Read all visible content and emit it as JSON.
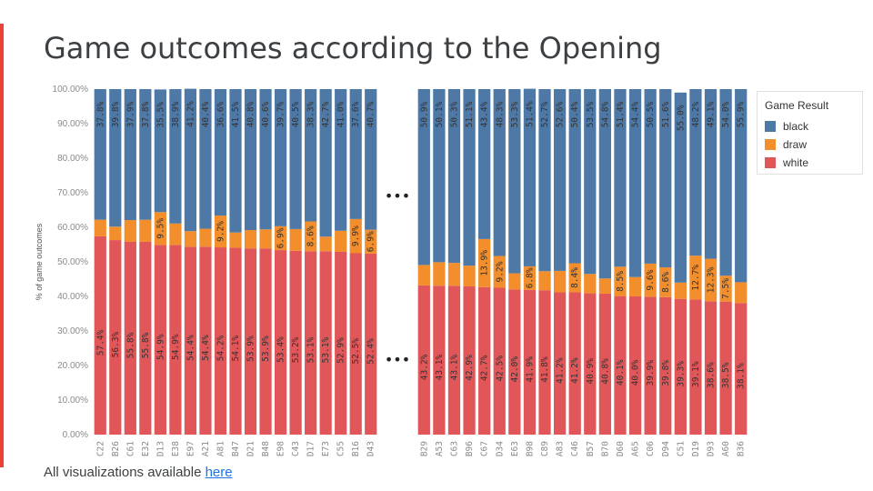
{
  "title": "Game outcomes according to the Opening",
  "footer": {
    "text": "All visualizations available ",
    "link_label": "here"
  },
  "legend": {
    "title": "Game Result",
    "items": [
      {
        "label": "black",
        "color": "#4e79a7"
      },
      {
        "label": "draw",
        "color": "#f28e2b"
      },
      {
        "label": "white",
        "color": "#e15759"
      }
    ]
  },
  "ellipsis": "•••",
  "chart_data": [
    {
      "type": "bar",
      "stacked": true,
      "ylabel": "% of game outcomes",
      "ylim": [
        0,
        100
      ],
      "yticks": [
        "0.00%",
        "10.00%",
        "20.00%",
        "30.00%",
        "40.00%",
        "50.00%",
        "60.00%",
        "70.00%",
        "80.00%",
        "90.00%",
        "100.00%"
      ],
      "categories": [
        "C22",
        "B26",
        "C61",
        "E32",
        "D13",
        "E38",
        "E97",
        "A21",
        "A81",
        "B47",
        "D21",
        "B48",
        "E98",
        "C43",
        "D17",
        "E73",
        "C55",
        "B16",
        "D43"
      ],
      "series": [
        {
          "name": "white",
          "values": [
            57.4,
            56.3,
            55.8,
            55.8,
            54.9,
            54.9,
            54.4,
            54.4,
            54.2,
            54.1,
            53.9,
            53.9,
            53.4,
            53.2,
            53.1,
            53.1,
            52.9,
            52.5,
            52.4
          ],
          "labels": [
            "57.4%",
            "56.3%",
            "55.8%",
            "55.8%",
            "54.9%",
            "54.9%",
            "54.4%",
            "54.4%",
            "54.2%",
            "54.1%",
            "53.9%",
            "53.9%",
            "53.4%",
            "53.2%",
            "53.1%",
            "53.1%",
            "52.9%",
            "52.5%",
            "52.4%"
          ]
        },
        {
          "name": "draw",
          "values": [
            4.8,
            3.9,
            6.3,
            6.4,
            9.5,
            6.2,
            4.5,
            5.2,
            9.2,
            4.4,
            5.3,
            5.5,
            6.9,
            6.3,
            8.6,
            4.2,
            6.1,
            9.9,
            6.9
          ],
          "labels": [
            "",
            "",
            "",
            "",
            "9.5%",
            "",
            "",
            "",
            "9.2%",
            "",
            "",
            "",
            "6.9%",
            "",
            "8.6%",
            "",
            "",
            "9.9%",
            "6.9%"
          ]
        },
        {
          "name": "black",
          "values": [
            37.8,
            39.8,
            37.9,
            37.8,
            35.5,
            38.9,
            41.2,
            40.4,
            36.6,
            41.5,
            40.8,
            40.6,
            39.7,
            40.5,
            38.3,
            42.7,
            41.0,
            37.6,
            40.7
          ],
          "labels": [
            "37.8%",
            "39.8%",
            "37.9%",
            "37.8%",
            "35.5%",
            "38.9%",
            "41.2%",
            "40.4%",
            "36.6%",
            "41.5%",
            "40.8%",
            "40.6%",
            "39.7%",
            "40.5%",
            "38.3%",
            "42.7%",
            "41.0%",
            "37.6%",
            "40.7%"
          ]
        }
      ]
    },
    {
      "type": "bar",
      "stacked": true,
      "ylim": [
        0,
        100
      ],
      "categories": [
        "B29",
        "A53",
        "C63",
        "B96",
        "C67",
        "D34",
        "E63",
        "B98",
        "C89",
        "A83",
        "C46",
        "B57",
        "B70",
        "D60",
        "A65",
        "C06",
        "D94",
        "C51",
        "D19",
        "D93",
        "A60",
        "B36"
      ],
      "series": [
        {
          "name": "white",
          "values": [
            43.2,
            43.1,
            43.1,
            42.9,
            42.7,
            42.5,
            42.0,
            41.9,
            41.8,
            41.2,
            41.2,
            40.9,
            40.8,
            40.1,
            40.0,
            39.9,
            39.8,
            39.3,
            39.1,
            38.6,
            38.5,
            38.1
          ],
          "labels": [
            "43.2%",
            "43.1%",
            "43.1%",
            "42.9%",
            "42.7%",
            "42.5%",
            "42.0%",
            "41.9%",
            "41.8%",
            "41.2%",
            "41.2%",
            "40.9%",
            "40.8%",
            "40.1%",
            "40.0%",
            "39.9%",
            "39.8%",
            "39.3%",
            "39.1%",
            "38.6%",
            "38.5%",
            "38.1%"
          ]
        },
        {
          "name": "draw",
          "values": [
            5.9,
            6.8,
            6.6,
            6.0,
            13.9,
            9.2,
            4.7,
            6.8,
            5.5,
            6.2,
            8.4,
            5.6,
            4.4,
            8.5,
            5.6,
            9.6,
            8.6,
            4.7,
            12.7,
            12.3,
            7.5,
            6.0
          ],
          "labels": [
            "",
            "",
            "",
            "",
            "13.9%",
            "9.2%",
            "",
            "6.8%",
            "",
            "",
            "8.4%",
            "",
            "",
            "8.5%",
            "",
            "9.6%",
            "8.6%",
            "",
            "12.7%",
            "12.3%",
            "7.5%",
            ""
          ]
        },
        {
          "name": "black",
          "values": [
            50.9,
            50.1,
            50.3,
            51.1,
            43.4,
            48.3,
            53.3,
            51.4,
            52.7,
            52.6,
            50.4,
            53.5,
            54.8,
            51.4,
            54.4,
            50.5,
            51.6,
            55.0,
            48.2,
            49.1,
            54.0,
            55.9
          ],
          "labels": [
            "50.9%",
            "50.1%",
            "50.3%",
            "51.1%",
            "43.4%",
            "48.3%",
            "53.3%",
            "51.4%",
            "52.7%",
            "52.6%",
            "50.4%",
            "53.5%",
            "54.8%",
            "51.4%",
            "54.4%",
            "50.5%",
            "51.6%",
            "55.0%",
            "48.2%",
            "49.1%",
            "54.0%",
            "55.9%"
          ]
        }
      ]
    }
  ]
}
